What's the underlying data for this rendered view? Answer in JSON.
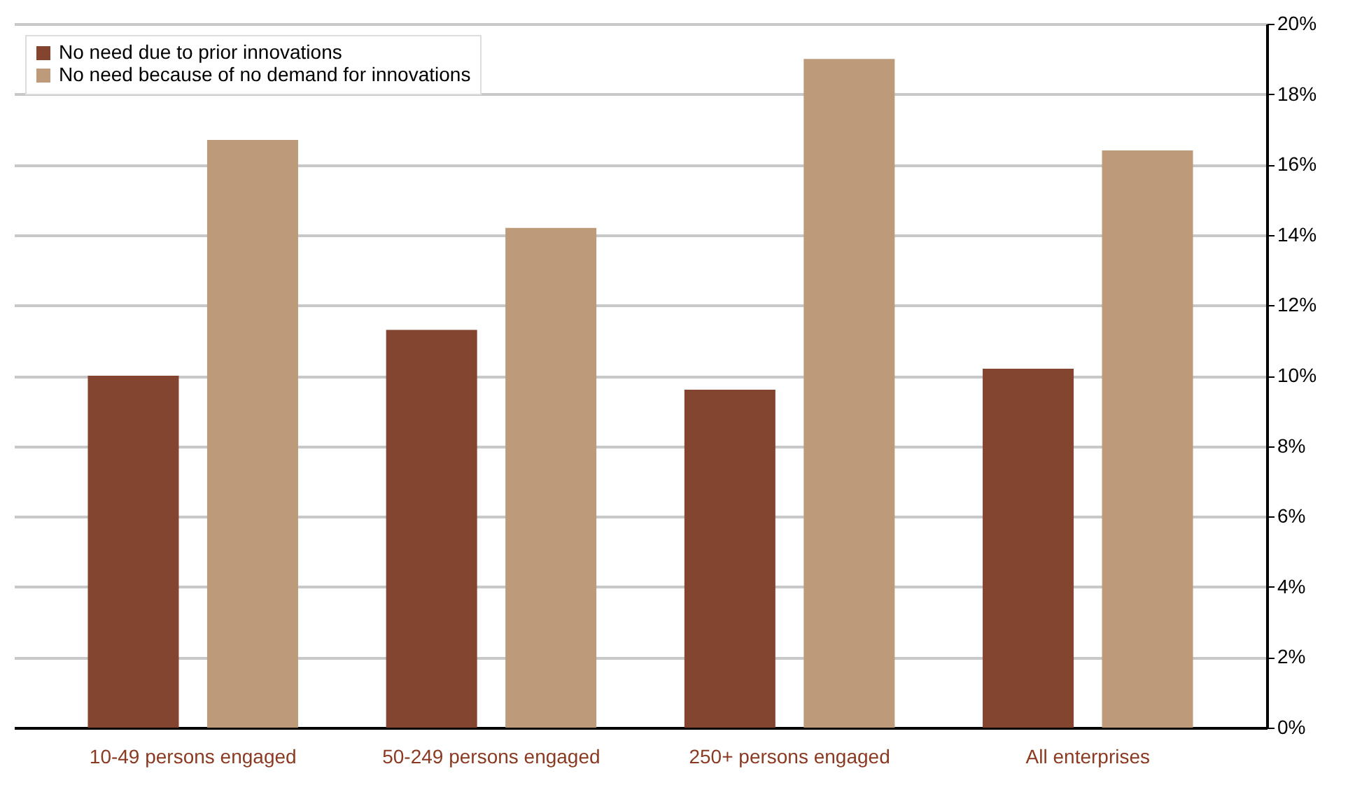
{
  "chart_data": {
    "type": "bar",
    "categories": [
      "10-49 persons engaged",
      "50-249 persons engaged",
      "250+ persons engaged",
      "All enterprises"
    ],
    "series": [
      {
        "name": "No need due to prior innovations",
        "color": "#83452f",
        "values": [
          10.0,
          11.3,
          9.6,
          10.2
        ]
      },
      {
        "name": "No need because of no demand for innovations",
        "color": "#bc9a7a",
        "values": [
          16.7,
          14.2,
          19.0,
          16.4
        ]
      }
    ],
    "ylim": [
      0,
      20
    ],
    "yticks": [
      {
        "value": 0,
        "label": "0%"
      },
      {
        "value": 2,
        "label": "2%"
      },
      {
        "value": 4,
        "label": "4%"
      },
      {
        "value": 6,
        "label": "6%"
      },
      {
        "value": 8,
        "label": "8%"
      },
      {
        "value": 10,
        "label": "10%"
      },
      {
        "value": 12,
        "label": "12%"
      },
      {
        "value": 14,
        "label": "14%"
      },
      {
        "value": 16,
        "label": "16%"
      },
      {
        "value": 18,
        "label": "18%"
      },
      {
        "value": 20,
        "label": "20%"
      }
    ],
    "grid": "y",
    "legend": "top left"
  }
}
